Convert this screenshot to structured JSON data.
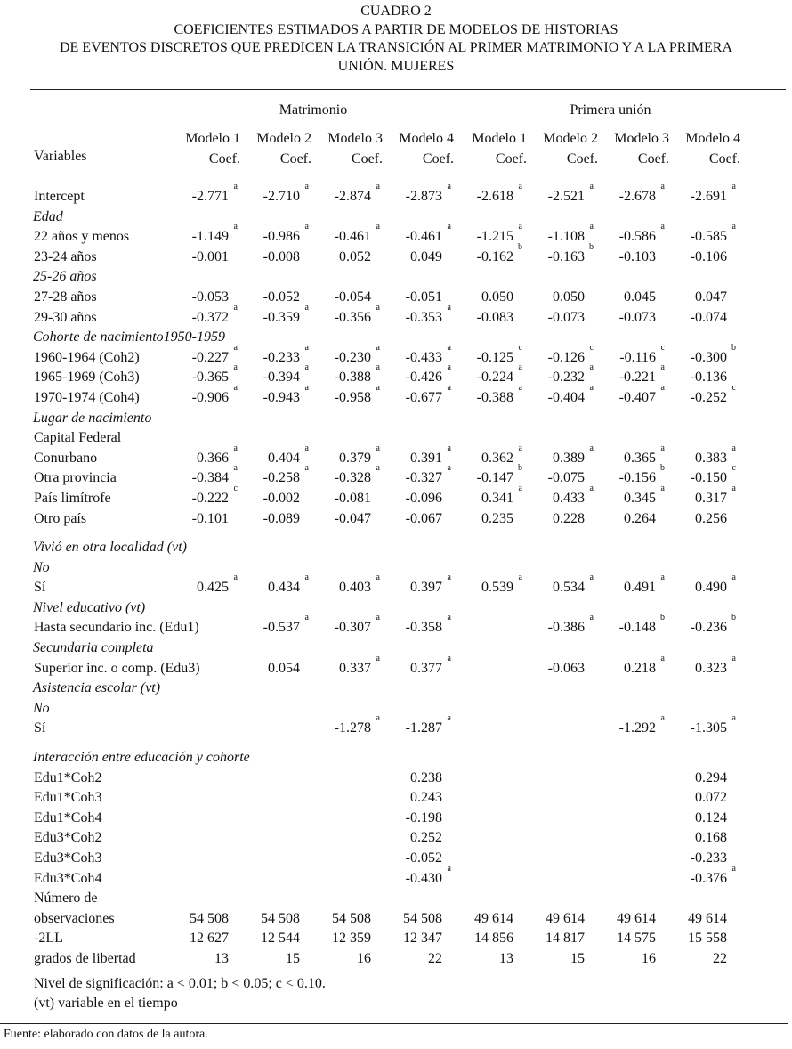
{
  "title": {
    "line1": "CUADRO 2",
    "line2": "COEFICIENTES ESTIMADOS A PARTIR DE MODELOS DE HISTORIAS",
    "line3": "DE EVENTOS DISCRETOS QUE PREDICEN LA TRANSICIÓN AL PRIMER MATRIMONIO Y A LA PRIMERA",
    "line4": "UNIÓN. MUJERES"
  },
  "header": {
    "variables": "Variables",
    "groups": [
      "Matrimonio",
      "Primera unión"
    ],
    "models": [
      "Modelo 1",
      "Modelo 2",
      "Modelo 3",
      "Modelo 4",
      "Modelo 1",
      "Modelo 2",
      "Modelo 3",
      "Modelo 4"
    ],
    "coef": "Coef."
  },
  "groups": [
    [
      {
        "label": "Intercept",
        "values": [
          [
            "-2.771",
            "a"
          ],
          [
            "-2.710",
            "a"
          ],
          [
            "-2.874",
            "a"
          ],
          [
            "-2.873",
            "a"
          ],
          [
            "-2.618",
            "a"
          ],
          [
            "-2.521",
            "a"
          ],
          [
            "-2.678",
            "a"
          ],
          [
            "-2.691",
            "a"
          ]
        ]
      },
      {
        "label": "Edad",
        "category": true
      },
      {
        "label": "22 años y menos",
        "values": [
          [
            "-1.149",
            "a"
          ],
          [
            "-0.986",
            "a"
          ],
          [
            "-0.461",
            "a"
          ],
          [
            "-0.461",
            "a"
          ],
          [
            "-1.215",
            "a"
          ],
          [
            "-1.108",
            "a"
          ],
          [
            "-0.586",
            "a"
          ],
          [
            "-0.585",
            "a"
          ]
        ]
      },
      {
        "label": "23-24 años",
        "values": [
          [
            "-0.001",
            ""
          ],
          [
            "-0.008",
            ""
          ],
          [
            "0.052",
            ""
          ],
          [
            "0.049",
            ""
          ],
          [
            "-0.162",
            "b"
          ],
          [
            "-0.163",
            "b"
          ],
          [
            "-0.103",
            ""
          ],
          [
            "-0.106",
            ""
          ]
        ]
      },
      {
        "label": "25-26 años",
        "category": true
      },
      {
        "label": "27-28 años",
        "values": [
          [
            "-0.053",
            ""
          ],
          [
            "-0.052",
            ""
          ],
          [
            "-0.054",
            ""
          ],
          [
            "-0.051",
            ""
          ],
          [
            "0.050",
            ""
          ],
          [
            "0.050",
            ""
          ],
          [
            "0.045",
            ""
          ],
          [
            "0.047",
            ""
          ]
        ]
      },
      {
        "label": "29-30 años",
        "values": [
          [
            "-0.372",
            "a"
          ],
          [
            "-0.359",
            "a"
          ],
          [
            "-0.356",
            "a"
          ],
          [
            "-0.353",
            "a"
          ],
          [
            "-0.083",
            ""
          ],
          [
            "-0.073",
            ""
          ],
          [
            "-0.073",
            ""
          ],
          [
            "-0.074",
            ""
          ]
        ]
      },
      {
        "label": "Cohorte de nacimiento1950-1959",
        "category": true
      },
      {
        "label": "1960-1964 (Coh2)",
        "values": [
          [
            "-0.227",
            "a"
          ],
          [
            "-0.233",
            "a"
          ],
          [
            "-0.230",
            "a"
          ],
          [
            "-0.433",
            "a"
          ],
          [
            "-0.125",
            "c"
          ],
          [
            "-0.126",
            "c"
          ],
          [
            "-0.116",
            "c"
          ],
          [
            "-0.300",
            "b"
          ]
        ]
      },
      {
        "label": "1965-1969 (Coh3)",
        "values": [
          [
            "-0.365",
            "a"
          ],
          [
            "-0.394",
            "a"
          ],
          [
            "-0.388",
            "a"
          ],
          [
            "-0.426",
            "a"
          ],
          [
            "-0.224",
            "a"
          ],
          [
            "-0.232",
            "a"
          ],
          [
            "-0.221",
            "a"
          ],
          [
            "-0.136",
            ""
          ]
        ]
      },
      {
        "label": "1970-1974 (Coh4)",
        "values": [
          [
            "-0.906",
            "a"
          ],
          [
            "-0.943",
            "a"
          ],
          [
            "-0.958",
            "a"
          ],
          [
            "-0.677",
            "a"
          ],
          [
            "-0.388",
            "a"
          ],
          [
            "-0.404",
            "a"
          ],
          [
            "-0.407",
            "a"
          ],
          [
            "-0.252",
            "c"
          ]
        ]
      },
      {
        "label": "Lugar de nacimiento",
        "category": true
      },
      {
        "label": "Capital Federal"
      },
      {
        "label": "Conurbano",
        "values": [
          [
            "0.366",
            "a"
          ],
          [
            "0.404",
            "a"
          ],
          [
            "0.379",
            "a"
          ],
          [
            "0.391",
            "a"
          ],
          [
            "0.362",
            "a"
          ],
          [
            "0.389",
            "a"
          ],
          [
            "0.365",
            "a"
          ],
          [
            "0.383",
            "a"
          ]
        ]
      },
      {
        "label": "Otra provincia",
        "values": [
          [
            "-0.384",
            "a"
          ],
          [
            "-0.258",
            "a"
          ],
          [
            "-0.328",
            "a"
          ],
          [
            "-0.327",
            "a"
          ],
          [
            "-0.147",
            "b"
          ],
          [
            "-0.075",
            ""
          ],
          [
            "-0.156",
            "b"
          ],
          [
            "-0.150",
            "c"
          ]
        ]
      },
      {
        "label": "País limítrofe",
        "values": [
          [
            "-0.222",
            "c"
          ],
          [
            "-0.002",
            ""
          ],
          [
            "-0.081",
            ""
          ],
          [
            "-0.096",
            ""
          ],
          [
            "0.341",
            "a"
          ],
          [
            "0.433",
            "a"
          ],
          [
            "0.345",
            "a"
          ],
          [
            "0.317",
            "a"
          ]
        ]
      },
      {
        "label": "Otro país",
        "values": [
          [
            "-0.101",
            ""
          ],
          [
            "-0.089",
            ""
          ],
          [
            "-0.047",
            ""
          ],
          [
            "-0.067",
            ""
          ],
          [
            "0.235",
            ""
          ],
          [
            "0.228",
            ""
          ],
          [
            "0.264",
            ""
          ],
          [
            "0.256",
            ""
          ]
        ]
      }
    ],
    [
      {
        "label": "Vivió en otra localidad (vt)",
        "category": true
      },
      {
        "label": "No",
        "category": true
      },
      {
        "label": "Sí",
        "values": [
          [
            "0.425",
            "a"
          ],
          [
            "0.434",
            "a"
          ],
          [
            "0.403",
            "a"
          ],
          [
            "0.397",
            "a"
          ],
          [
            "0.539",
            "a"
          ],
          [
            "0.534",
            "a"
          ],
          [
            "0.491",
            "a"
          ],
          [
            "0.490",
            "a"
          ]
        ]
      },
      {
        "label": "Nivel educativo (vt)",
        "category": true
      },
      {
        "label": "Hasta secundario inc. (Edu1)",
        "values": [
          null,
          [
            "-0.537",
            "a"
          ],
          [
            "-0.307",
            "a"
          ],
          [
            "-0.358",
            "a"
          ],
          null,
          [
            "-0.386",
            "a"
          ],
          [
            "-0.148",
            "b"
          ],
          [
            "-0.236",
            "b"
          ]
        ]
      },
      {
        "label": "Secundaria completa",
        "category": true
      },
      {
        "label": "Superior inc. o comp.  (Edu3)",
        "values": [
          null,
          [
            "0.054",
            ""
          ],
          [
            "0.337",
            "a"
          ],
          [
            "0.377",
            "a"
          ],
          null,
          [
            "-0.063",
            ""
          ],
          [
            "0.218",
            "a"
          ],
          [
            "0.323",
            "a"
          ]
        ]
      },
      {
        "label": "Asistencia escolar (vt)",
        "category": true
      },
      {
        "label": "No",
        "category": true
      },
      {
        "label": "Sí",
        "values": [
          null,
          null,
          [
            "-1.278",
            "a"
          ],
          [
            "-1.287",
            "a"
          ],
          null,
          null,
          [
            "-1.292",
            "a"
          ],
          [
            "-1.305",
            "a"
          ]
        ]
      }
    ],
    [
      {
        "label": "Interacción entre educación y cohorte",
        "category": true
      },
      {
        "label": "Edu1*Coh2",
        "values": [
          null,
          null,
          null,
          [
            "0.238",
            ""
          ],
          null,
          null,
          null,
          [
            "0.294",
            ""
          ]
        ]
      },
      {
        "label": "Edu1*Coh3",
        "values": [
          null,
          null,
          null,
          [
            "0.243",
            ""
          ],
          null,
          null,
          null,
          [
            "0.072",
            ""
          ]
        ]
      },
      {
        "label": "Edu1*Coh4",
        "values": [
          null,
          null,
          null,
          [
            "-0.198",
            ""
          ],
          null,
          null,
          null,
          [
            "0.124",
            ""
          ]
        ]
      },
      {
        "label": "Edu3*Coh2",
        "values": [
          null,
          null,
          null,
          [
            "0.252",
            ""
          ],
          null,
          null,
          null,
          [
            "0.168",
            ""
          ]
        ]
      },
      {
        "label": "Edu3*Coh3",
        "values": [
          null,
          null,
          null,
          [
            "-0.052",
            ""
          ],
          null,
          null,
          null,
          [
            "-0.233",
            ""
          ]
        ]
      },
      {
        "label": "Edu3*Coh4",
        "values": [
          null,
          null,
          null,
          [
            "-0.430",
            "a"
          ],
          null,
          null,
          null,
          [
            "-0.376",
            "a"
          ]
        ]
      },
      {
        "label": "Número de"
      },
      {
        "label": "observaciones",
        "values": [
          [
            "54 508",
            ""
          ],
          [
            "54 508",
            ""
          ],
          [
            "54 508",
            ""
          ],
          [
            "54 508",
            ""
          ],
          [
            "49 614",
            ""
          ],
          [
            "49 614",
            ""
          ],
          [
            "49 614",
            ""
          ],
          [
            "49 614",
            ""
          ]
        ]
      },
      {
        "label": "-2LL",
        "values": [
          [
            "12 627",
            ""
          ],
          [
            "12 544",
            ""
          ],
          [
            "12 359",
            ""
          ],
          [
            "12 347",
            ""
          ],
          [
            "14 856",
            ""
          ],
          [
            "14 817",
            ""
          ],
          [
            "14 575",
            ""
          ],
          [
            "15 558",
            ""
          ]
        ]
      },
      {
        "label": "grados de libertad",
        "values": [
          [
            "13",
            ""
          ],
          [
            "15",
            ""
          ],
          [
            "16",
            ""
          ],
          [
            "22",
            ""
          ],
          [
            "13",
            ""
          ],
          [
            "15",
            ""
          ],
          [
            "16",
            ""
          ],
          [
            "22",
            ""
          ]
        ]
      }
    ]
  ],
  "notes": {
    "significance": "Nivel de significación: a < 0.01; b < 0.05; c < 0.10.",
    "vt": "(vt) variable en el tiempo"
  },
  "source": "Fuente: elaborado con datos de la autora."
}
